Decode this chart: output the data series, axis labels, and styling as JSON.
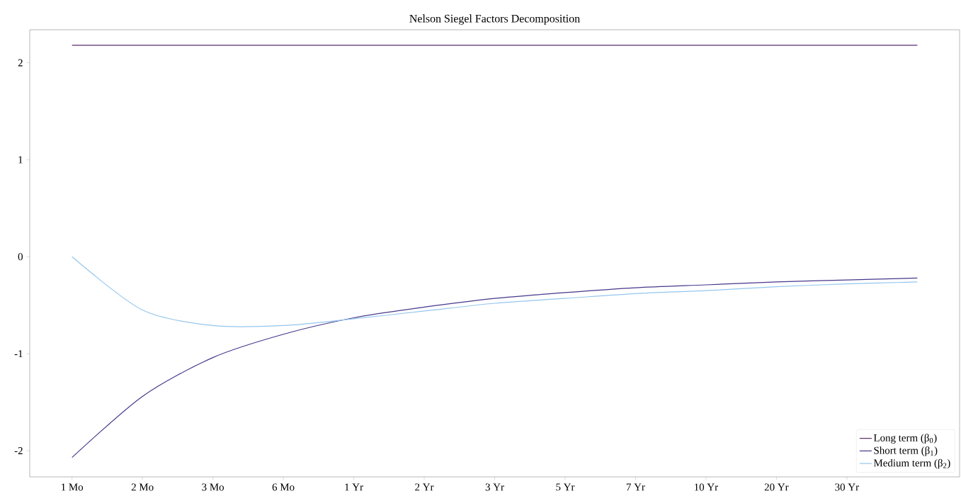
{
  "chart_data": {
    "type": "line",
    "title": "Nelson Siegel Factors Decomposition",
    "categories": [
      "1 Mo",
      "2 Mo",
      "3 Mo",
      "6 Mo",
      "1 Yr",
      "2 Yr",
      "3 Yr",
      "5 Yr",
      "7 Yr",
      "10 Yr",
      "20 Yr",
      "30 Yr",
      null
    ],
    "series": [
      {
        "name": "Long term (β$_{0}$)",
        "color": "#5b2a6b",
        "values": [
          2.18,
          2.18,
          2.18,
          2.18,
          2.18,
          2.18,
          2.18,
          2.18,
          2.18,
          2.18,
          2.18,
          2.18,
          2.18
        ]
      },
      {
        "name": "Short term (β$_{1}$)",
        "color": "#46388c",
        "values": [
          -2.07,
          -1.44,
          -1.04,
          -0.8,
          -0.63,
          -0.52,
          -0.43,
          -0.37,
          -0.32,
          -0.29,
          -0.26,
          -0.24,
          -0.22
        ]
      },
      {
        "name": "Medium term (β$_{2}$)",
        "color": "#94c6ee",
        "values": [
          0,
          -0.55,
          -0.71,
          -0.71,
          -0.64,
          -0.56,
          -0.48,
          -0.43,
          -0.38,
          -0.35,
          -0.31,
          -0.28,
          -0.26
        ]
      }
    ],
    "ylim": [
      -2.27,
      2.34
    ],
    "yticks": [
      -2,
      -1,
      0,
      1,
      2
    ],
    "legend": "bottom right",
    "grid": false,
    "marker": "none",
    "line_style": "solid"
  }
}
